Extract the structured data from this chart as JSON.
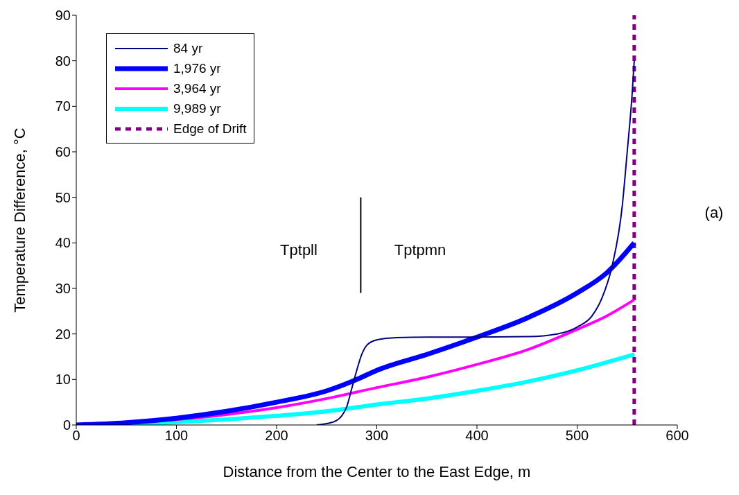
{
  "chart_data": {
    "type": "line",
    "xlabel": "Distance from the Center to the East Edge, m",
    "ylabel": "Temperature Difference, °C",
    "xlim": [
      0,
      600
    ],
    "xticks": [
      0,
      100,
      200,
      300,
      400,
      500,
      600
    ],
    "ylim": [
      0,
      90
    ],
    "yticks": [
      0,
      10,
      20,
      30,
      40,
      50,
      60,
      70,
      80,
      90
    ],
    "grid": false,
    "legend": "top left",
    "marker": "none",
    "series": [
      {
        "name": "84 yr",
        "color": "#000080",
        "x": [
          240,
          250,
          260,
          265,
          270,
          275,
          280,
          285,
          290,
          300,
          320,
          350,
          400,
          450,
          480,
          500,
          515,
          525,
          535,
          545,
          550,
          555,
          557
        ],
        "values": [
          0,
          0.3,
          1,
          2,
          4,
          8,
          12,
          15.5,
          17.5,
          18.7,
          19.2,
          19.3,
          19.3,
          19.4,
          20,
          21.5,
          24,
          28,
          35,
          48,
          60,
          73,
          80
        ]
      },
      {
        "name": "1,976 yr",
        "color": "#0000ff",
        "x": [
          0,
          50,
          100,
          150,
          200,
          250,
          280,
          300,
          350,
          400,
          450,
          500,
          530,
          557
        ],
        "values": [
          0,
          0.5,
          1.5,
          3,
          5,
          7.5,
          10,
          12,
          15.5,
          19.3,
          23.5,
          29,
          33.5,
          40
        ]
      },
      {
        "name": "3,964 yr",
        "color": "#ff00ff",
        "x": [
          0,
          100,
          150,
          200,
          250,
          300,
          350,
          400,
          450,
          500,
          530,
          557
        ],
        "values": [
          0,
          1.2,
          2.3,
          3.8,
          5.8,
          8.2,
          10.5,
          13.3,
          16.5,
          21,
          24,
          27.5
        ]
      },
      {
        "name": "9,989 yr",
        "color": "#00ffff",
        "x": [
          0,
          100,
          150,
          200,
          250,
          300,
          350,
          400,
          450,
          500,
          530,
          557
        ],
        "values": [
          0,
          0.6,
          1.2,
          2,
          3,
          4.5,
          5.8,
          7.5,
          9.5,
          12,
          13.8,
          15.5
        ]
      },
      {
        "name": "Edge of Drift",
        "color": "#800080",
        "line_style": "dashed",
        "x": [
          557,
          557
        ],
        "values": [
          0,
          90
        ]
      },
      {
        "color": "#000000",
        "x": [
          284,
          284
        ],
        "values": [
          29,
          50
        ]
      }
    ],
    "annotations": [
      "Tptpll",
      "Tptpmn",
      "(a)"
    ]
  }
}
